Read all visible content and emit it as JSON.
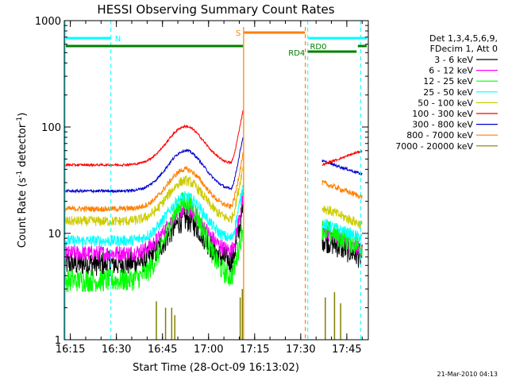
{
  "chart_data": {
    "type": "line",
    "title": "HESSI Observing Summary Count Rates",
    "xlabel": "Start Time (28-Oct-09 16:13:02)",
    "ylabel_main": "Count Rate (s",
    "ylabel_sup1": "-1",
    "ylabel_mid": " detector",
    "ylabel_sup2": "-1",
    "ylabel_end": ")",
    "y_scale": "log",
    "ylim": [
      1,
      1000
    ],
    "xlim": [
      "16:13:02",
      "17:52:00"
    ],
    "x_ticks": [
      "16:15",
      "16:30",
      "16:45",
      "17:00",
      "17:15",
      "17:30",
      "17:45"
    ],
    "y_ticks": [
      "1",
      "10",
      "100",
      "1000"
    ],
    "footer_date": "21-Mar-2010 04:13",
    "legend_header": [
      "Det 1,3,4,5,6,9,",
      "FDecim 1, Att 0"
    ],
    "legend_placement": "right",
    "series": [
      {
        "name": "3 - 6 keV",
        "color": "#000000"
      },
      {
        "name": "6 - 12 keV",
        "color": "#ff00ff"
      },
      {
        "name": "12 - 25 keV",
        "color": "#00ff00"
      },
      {
        "name": "25 - 50 keV",
        "color": "#00ffff"
      },
      {
        "name": "50 - 100 keV",
        "color": "#cccc00"
      },
      {
        "name": "100 - 300 keV",
        "color": "#ff0000"
      },
      {
        "name": "300 - 800 keV",
        "color": "#0000cc"
      },
      {
        "name": "800 - 7000 keV",
        "color": "#ff8000"
      },
      {
        "name": "7000 - 20000 keV",
        "color": "#808000"
      }
    ],
    "flags": [
      {
        "label": "N",
        "color": "#00ffff"
      },
      {
        "label": "S",
        "color": "#ff8000"
      },
      {
        "label": "RD0",
        "color": "#008000"
      },
      {
        "label": "RD4",
        "color": "#008000"
      }
    ]
  }
}
